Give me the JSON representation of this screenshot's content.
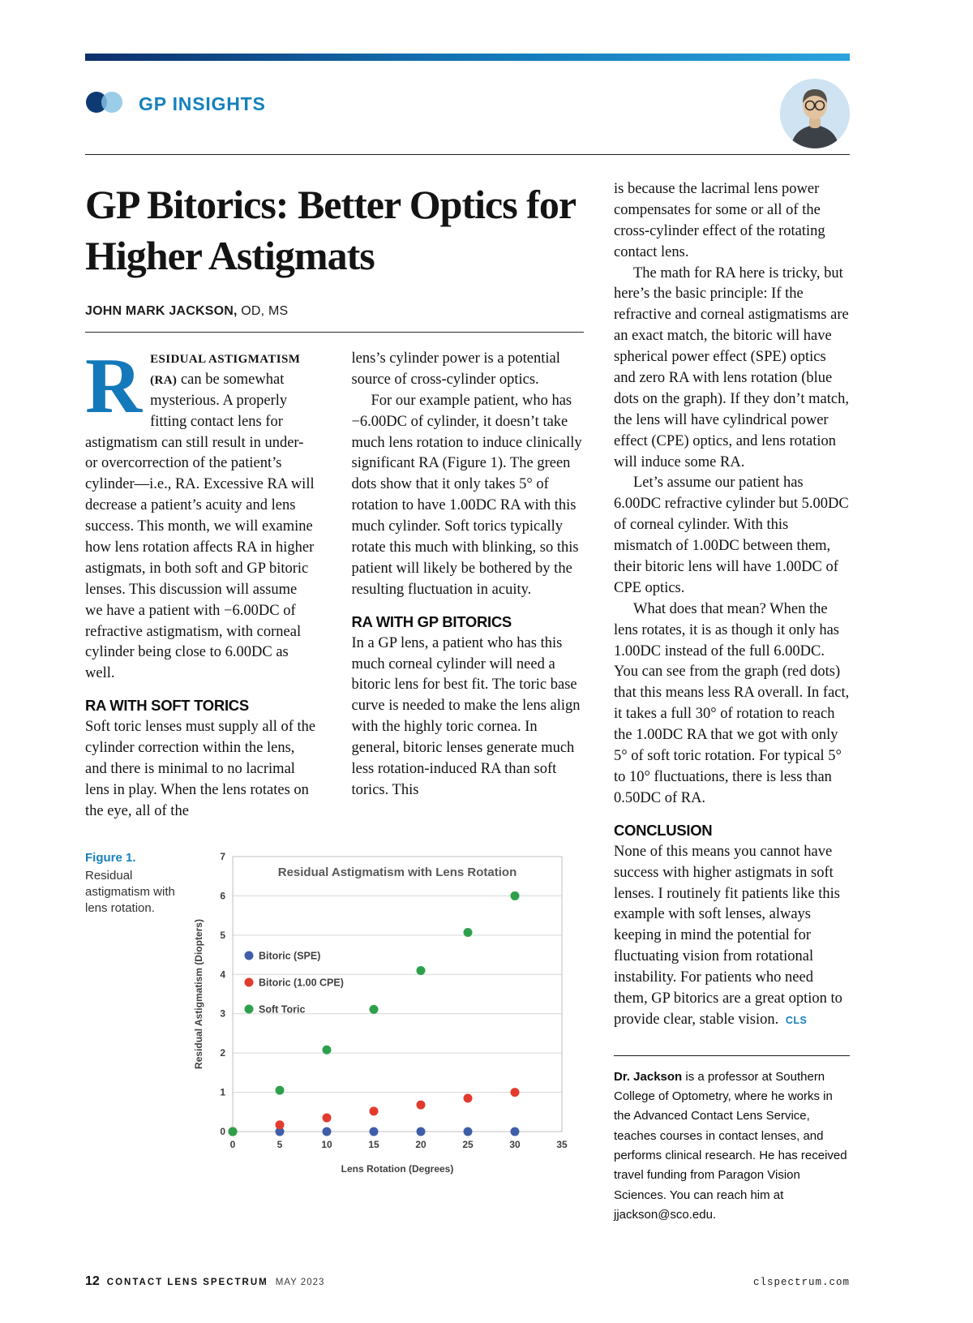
{
  "header": {
    "column_name": "GP INSIGHTS"
  },
  "article": {
    "title": "GP Bitorics: Better Optics for Higher Astigmats",
    "author_name": "JOHN MARK JACKSON,",
    "author_credentials": "OD, MS",
    "dropcap": "R",
    "col1": {
      "lead_in": "ESIDUAL ASTIGMATISM (RA)",
      "intro_rest": "can be somewhat mysterious. A properly fitting contact lens for astigmatism can still result in under- or overcorrection of the patient’s cylinder—i.e., RA. Excessive RA will decrease a patient’s acuity and lens success. This month, we will examine how lens rotation affects RA in higher astigmats, in both soft and GP bitoric lenses. This discussion will assume we have a patient with −6.00DC of refractive astigmatism, with corneal cylinder being close to 6.00DC as well.",
      "heading": "RA WITH SOFT TORICS",
      "para": "Soft toric lenses must supply all of the cylinder correction within the lens, and there is minimal to no lacrimal lens in play. When the lens rotates on the eye, all of the"
    },
    "col2": {
      "para1": "lens’s cylinder power is a potential source of cross-cylinder optics.",
      "para2": "For our example patient, who has −6.00DC of cylinder, it doesn’t take much lens rotation to induce clinically significant RA (Figure 1). The green dots show that it only takes 5° of rotation to have 1.00DC RA with this much cylinder. Soft torics typically rotate this much with blinking, so this patient will likely be bothered by the resulting fluctuation in acuity.",
      "heading": "RA WITH GP BITORICS",
      "para3": "In a GP lens, a patient who has this much corneal cylinder will need a bitoric lens for best fit. The toric base curve is needed to make the lens align with the highly toric cornea. In general, bitoric lenses generate much less rotation-induced RA than soft torics. This"
    },
    "col3": {
      "para1": "is because the lacrimal lens power compensates for some or all of the cross-cylinder effect of the rotating contact lens.",
      "para2": "The math for RA here is tricky, but here’s the basic principle: If the refractive and corneal astigmatisms are an exact match, the bitoric will have spherical power effect (SPE) optics and zero RA with lens rotation (blue dots on the graph). If they don’t match, the lens will have cylindrical power effect (CPE) optics, and lens rotation will induce some RA.",
      "para3": "Let’s assume our patient has 6.00DC refractive cylinder but 5.00DC of corneal cylinder. With this mismatch of 1.00DC between them, their bitoric lens will have 1.00DC of CPE optics.",
      "para4": "What does that mean? When the lens rotates, it is as though it only has 1.00DC instead of the full 6.00DC. You can see from the graph (red dots) that this means less RA overall. In fact, it takes a full 30° of rotation to reach the 1.00DC RA that we got with only 5° of soft toric rotation. For typical 5° to 10° fluctuations, there is less than 0.50DC of RA.",
      "heading": "CONCLUSION",
      "conclusion": "None of this means you cannot have success with higher astigmats in soft lenses. I routinely fit patients like this example with soft lenses, always keeping in mind the potential for fluctuating vision from rotational instability. For patients who need them, GP bitorics are a great option to provide clear, stable vision.",
      "cls_tag": "CLS"
    }
  },
  "figure": {
    "label": "Figure 1.",
    "caption": "Residual astigmatism with lens rotation."
  },
  "chart_data": {
    "type": "scatter",
    "title": "Residual Astigmatism with Lens Rotation",
    "xlabel": "Lens Rotation (Degrees)",
    "ylabel": "Residual Astigmatism (Diopters)",
    "xlim": [
      0,
      35
    ],
    "ylim": [
      0,
      7
    ],
    "x_ticks": [
      0,
      5,
      10,
      15,
      20,
      25,
      30,
      35
    ],
    "y_ticks": [
      0,
      1,
      2,
      3,
      4,
      5,
      6,
      7
    ],
    "grid": "horizontal",
    "legend_position": "inside-left",
    "x": [
      0,
      5,
      10,
      15,
      20,
      25,
      30
    ],
    "series": [
      {
        "name": "Bitoric (SPE)",
        "color": "#3f5ea9",
        "values": [
          0,
          0,
          0,
          0,
          0,
          0,
          0
        ]
      },
      {
        "name": "Bitoric (1.00 CPE)",
        "color": "#e23b2e",
        "values": [
          0,
          0.17,
          0.35,
          0.52,
          0.68,
          0.85,
          1.0
        ]
      },
      {
        "name": "Soft Toric",
        "color": "#2ea04c",
        "values": [
          0,
          1.05,
          2.08,
          3.11,
          4.1,
          5.07,
          6.0
        ]
      }
    ]
  },
  "bio": {
    "name": "Dr. Jackson",
    "text": "is a professor at Southern College of Optometry, where he works in the Advanced Contact Lens Service, teaches courses in contact lenses, and performs clinical research. He has received travel funding from Paragon Vision Sciences. You can reach him at jjackson@sco.edu."
  },
  "footer": {
    "page_number": "12",
    "magazine": "CONTACT LENS SPECTRUM",
    "issue": "MAY 2023",
    "website": "clspectrum.com"
  },
  "colors": {
    "accent_blue": "#1581bd",
    "dropcap_blue": "#1479ba",
    "bar_gradient_start": "#0d2f6b",
    "bar_gradient_end": "#2ba3dc"
  }
}
